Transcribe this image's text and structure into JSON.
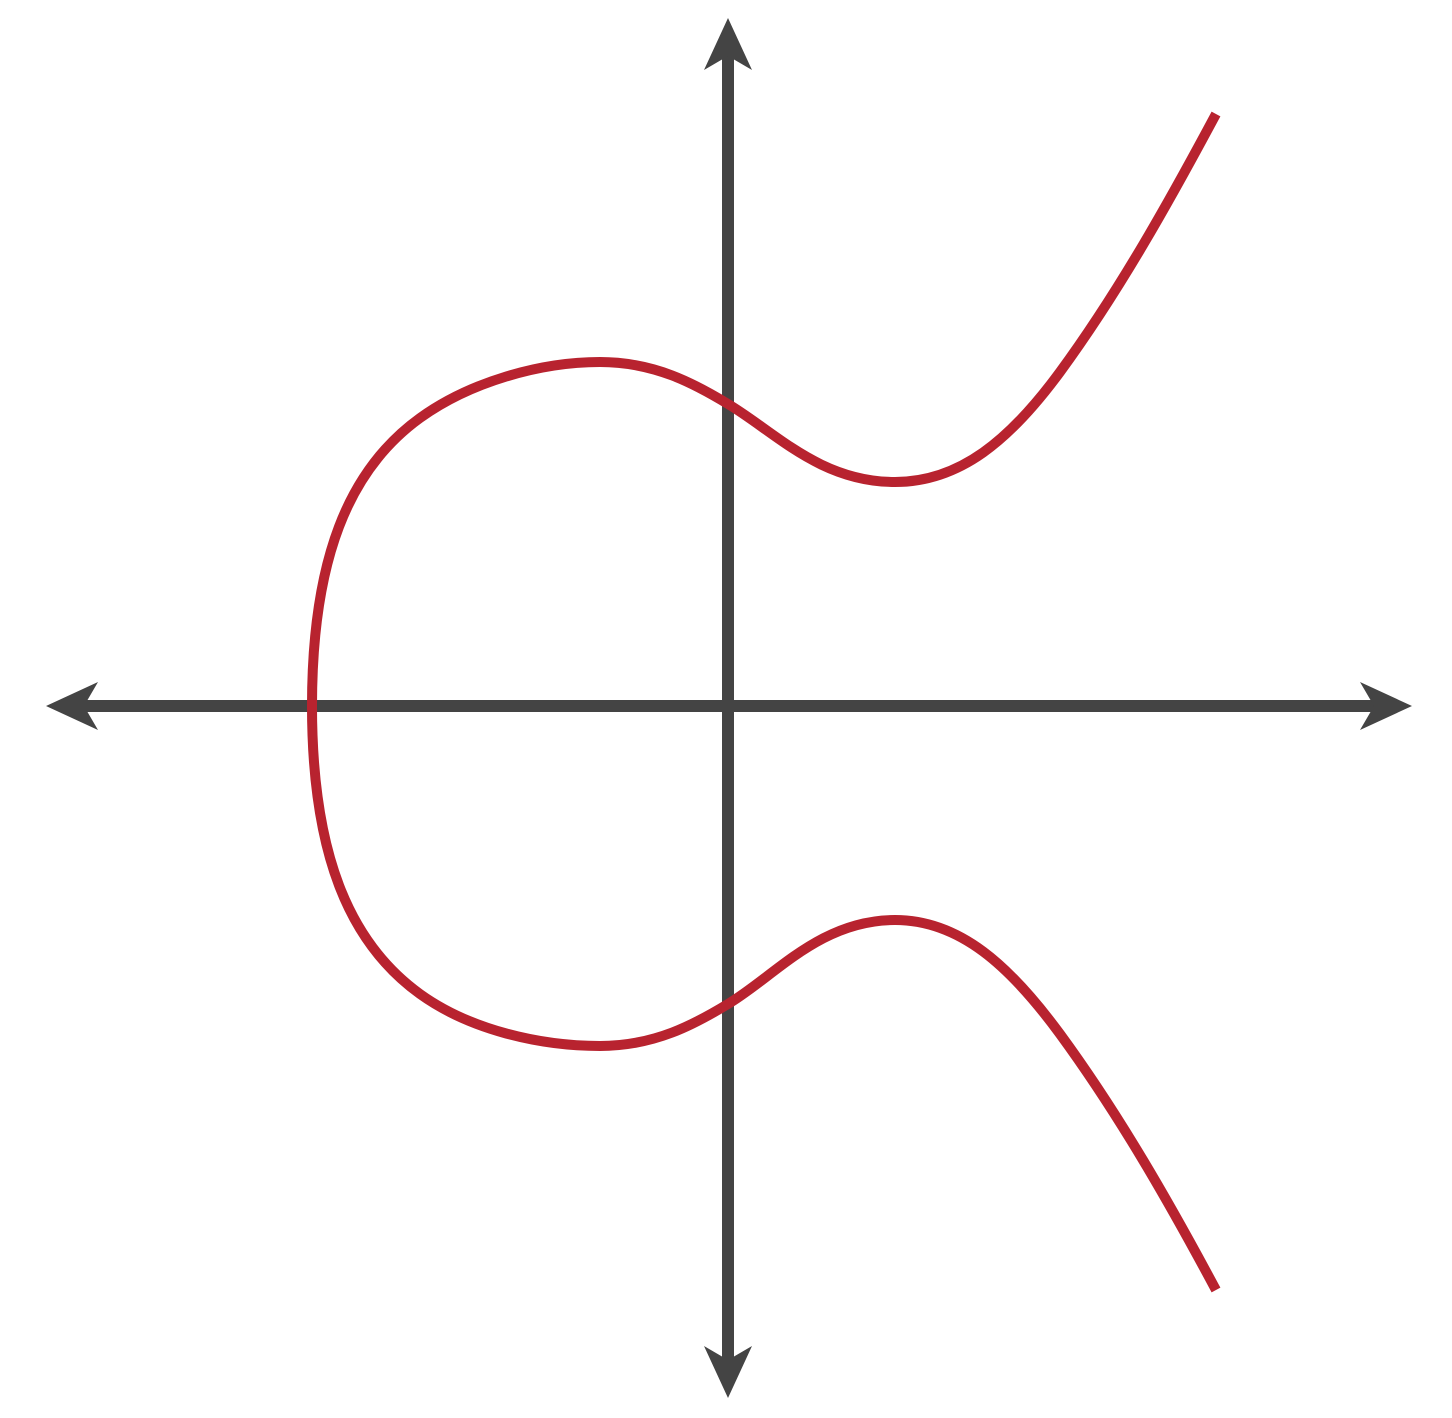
{
  "diagram": {
    "subject": "elliptic curve",
    "colors": {
      "axis": "#444444",
      "curve": "#b8232f",
      "background": "#ffffff"
    }
  }
}
